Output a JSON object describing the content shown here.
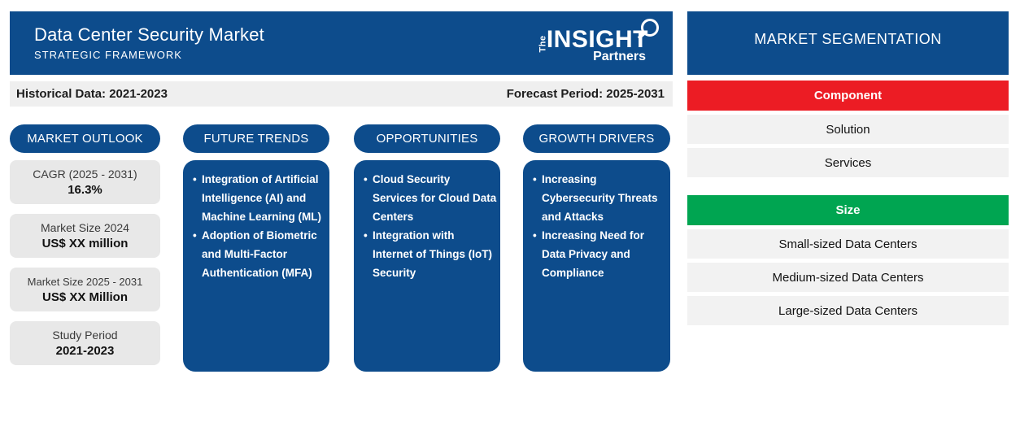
{
  "header": {
    "title": "Data Center Security Market",
    "subtitle": "STRATEGIC FRAMEWORK",
    "logo": {
      "the": "The",
      "insight": "INSIGHT",
      "partners": "Partners"
    }
  },
  "period_bar": {
    "historical": "Historical Data: 2021-2023",
    "forecast": "Forecast Period: 2025-2031"
  },
  "columns": [
    {
      "id": "market-outlook",
      "label": "MARKET OUTLOOK",
      "cards": [
        {
          "title": "CAGR (2025 - 2031)",
          "value": "16.3%"
        },
        {
          "title": "Market Size 2024",
          "value": "US$ XX million"
        },
        {
          "title": "Market Size 2025 - 2031",
          "value": "US$ XX Million"
        },
        {
          "title": "Study Period",
          "value": "2021-2023"
        }
      ]
    },
    {
      "id": "future-trends",
      "label": "FUTURE TRENDS",
      "bullets": [
        "Integration of Artificial Intelligence (AI) and Machine Learning (ML)",
        "Adoption of Biometric and Multi-Factor Authentication (MFA)"
      ]
    },
    {
      "id": "opportunities",
      "label": "OPPORTUNITIES",
      "bullets": [
        "Cloud Security Services for Cloud Data Centers",
        "Integration with Internet of Things (IoT) Security"
      ]
    },
    {
      "id": "growth-drivers",
      "label": "GROWTH DRIVERS",
      "bullets": [
        "Increasing Cybersecurity Threats and Attacks",
        "Increasing Need for Data Privacy and Compliance"
      ]
    }
  ],
  "segmentation": {
    "title": "MARKET SEGMENTATION",
    "groups": [
      {
        "label": "Component",
        "color": "#ec1c24",
        "items": [
          "Solution",
          "Services"
        ]
      },
      {
        "label": "Size",
        "color": "#00a551",
        "items": [
          "Small-sized Data Centers",
          "Medium-sized Data Centers",
          "Large-sized Data Centers"
        ]
      }
    ]
  },
  "colors": {
    "brand_blue": "#0d4c8c",
    "component_red": "#ec1c24",
    "size_green": "#00a551"
  }
}
